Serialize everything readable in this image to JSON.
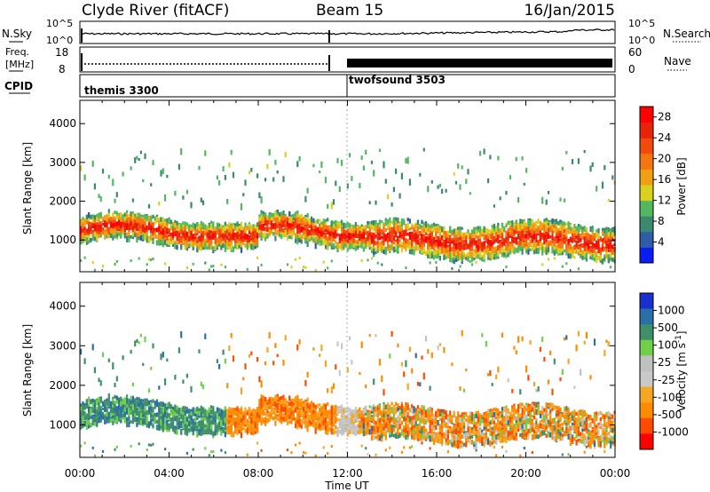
{
  "header": {
    "station": "Clyde River (fitACF)",
    "beam": "Beam 15",
    "date": "16/Jan/2015"
  },
  "colors": {
    "power_scale": [
      "#0b1cf4",
      "#2f5ca6",
      "#3c8a6e",
      "#52b860",
      "#d9d020",
      "#f0a010",
      "#f77510",
      "#f04a0c",
      "#e8230a",
      "#ff0000"
    ],
    "velocity_scale": [
      "#ff0000",
      "#ff4a00",
      "#ff8c00",
      "#f5a623",
      "#c9c9c9",
      "#c0c0c0",
      "#6fd14a",
      "#3f8f6a",
      "#2b6fa8",
      "#1a2fd0"
    ]
  },
  "chart_data": [
    {
      "type": "line",
      "name": "status-panel",
      "left_label": "N.Sky",
      "right_label": "N.Search",
      "left_ticks": [
        "10^5",
        "10^0"
      ],
      "right_ticks": [
        "10^5",
        "10^0"
      ]
    },
    {
      "type": "line",
      "name": "frequency-panel",
      "left_label_1": "Freq.",
      "left_label_2": "[MHz]",
      "right_label": "Nave",
      "left_ticks": [
        18,
        8
      ],
      "right_ticks": [
        60,
        0
      ]
    },
    {
      "type": "table",
      "name": "cpid-panel",
      "label": "CPID",
      "segments": [
        {
          "start": 0,
          "end": 12,
          "label": "themis 3300"
        },
        {
          "start": 12,
          "end": 24,
          "label": "twofsound 3503"
        }
      ]
    },
    {
      "type": "heatmap",
      "name": "power-panel",
      "ylabel": "Slant Range [km]",
      "xlim": [
        0,
        24
      ],
      "ylim": [
        180,
        4600
      ],
      "yticks": [
        1000,
        2000,
        3000,
        4000
      ],
      "colorbar": {
        "label": "Power [dB]",
        "range": [
          0,
          30
        ],
        "ticks": [
          "4",
          "8",
          "12",
          "16",
          "20",
          "24",
          "28"
        ]
      }
    },
    {
      "type": "heatmap",
      "name": "velocity-panel",
      "ylabel": "Slant Range [km]",
      "xlabel": "Time UT",
      "xlim": [
        0,
        24
      ],
      "ylim": [
        180,
        4600
      ],
      "yticks": [
        1000,
        2000,
        3000,
        4000
      ],
      "xticks": [
        "00:00",
        "04:00",
        "08:00",
        "12:00",
        "16:00",
        "20:00",
        "00:00"
      ],
      "colorbar": {
        "label": "Velocity [m s",
        "label_sup": "-1",
        "label_end": "]",
        "ticks": [
          "1000",
          "500",
          "100",
          "25",
          "-25",
          "-100",
          "-500",
          "-1000"
        ]
      }
    }
  ]
}
